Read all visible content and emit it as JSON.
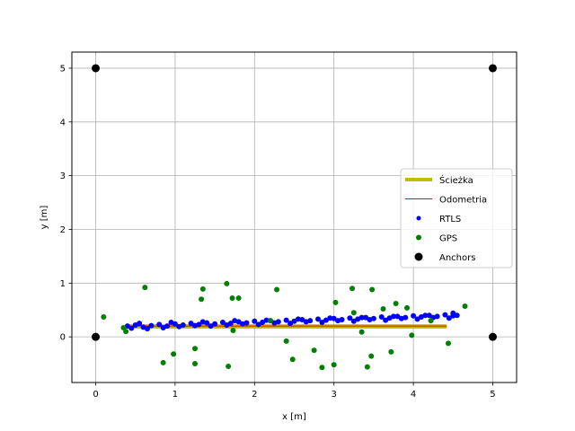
{
  "chart_data": {
    "type": "scatter",
    "xlabel": "x [m]",
    "ylabel": "y [m]",
    "xlim": [
      -0.3,
      5.3
    ],
    "ylim": [
      -0.85,
      5.3
    ],
    "xticks": [
      0,
      1,
      2,
      3,
      4,
      5
    ],
    "yticks": [
      0,
      1,
      2,
      3,
      4,
      5
    ],
    "grid": true,
    "legend_position": "center-right",
    "colors": {
      "path": "#bfbf00",
      "odometry": "#ff0000",
      "rtls": "#0000ff",
      "gps": "#008000",
      "anchors": "#000000"
    },
    "series": [
      {
        "name": "Ścieżka",
        "kind": "line",
        "x": [
          0.38,
          4.42
        ],
        "y": [
          0.2,
          0.2
        ]
      },
      {
        "name": "Odometria",
        "kind": "line",
        "x": [
          0.38,
          4.42
        ],
        "y": [
          0.2,
          0.2
        ]
      },
      {
        "name": "RTLS",
        "kind": "scatter",
        "x": [
          0.4,
          0.5,
          0.6,
          0.7,
          0.8,
          0.9,
          1.0,
          1.1,
          1.2,
          1.3,
          1.4,
          1.5,
          1.6,
          1.7,
          1.8,
          1.9,
          2.0,
          2.1,
          2.2,
          2.3,
          2.4,
          2.5,
          2.6,
          2.7,
          2.8,
          2.9,
          3.0,
          3.1,
          3.2,
          3.3,
          3.4,
          3.5,
          3.6,
          3.7,
          3.8,
          3.9,
          4.0,
          4.1,
          4.2,
          4.3,
          4.4,
          4.5,
          4.55,
          0.45,
          0.65,
          0.85,
          1.05,
          1.25,
          1.45,
          1.65,
          1.85,
          2.05,
          2.25,
          2.45,
          2.65,
          2.85,
          3.05,
          3.25,
          3.45,
          3.65,
          3.85,
          4.05,
          4.25,
          4.45,
          0.55,
          0.95,
          1.35,
          1.75,
          2.15,
          2.55,
          2.95,
          3.35,
          3.75,
          4.15,
          4.5
        ],
        "y": [
          0.2,
          0.22,
          0.18,
          0.21,
          0.23,
          0.2,
          0.24,
          0.22,
          0.25,
          0.23,
          0.26,
          0.24,
          0.27,
          0.25,
          0.28,
          0.26,
          0.29,
          0.27,
          0.3,
          0.28,
          0.31,
          0.29,
          0.32,
          0.3,
          0.33,
          0.31,
          0.34,
          0.32,
          0.35,
          0.33,
          0.36,
          0.34,
          0.37,
          0.35,
          0.38,
          0.36,
          0.39,
          0.37,
          0.4,
          0.38,
          0.41,
          0.39,
          0.4,
          0.16,
          0.15,
          0.17,
          0.19,
          0.21,
          0.2,
          0.22,
          0.24,
          0.23,
          0.26,
          0.25,
          0.28,
          0.27,
          0.3,
          0.29,
          0.32,
          0.31,
          0.34,
          0.33,
          0.36,
          0.35,
          0.25,
          0.27,
          0.28,
          0.3,
          0.31,
          0.33,
          0.35,
          0.36,
          0.38,
          0.4,
          0.44
        ]
      },
      {
        "name": "GPS",
        "kind": "scatter",
        "x": [
          0.1,
          0.35,
          0.38,
          0.62,
          0.85,
          0.98,
          1.25,
          1.25,
          1.33,
          1.35,
          1.65,
          1.67,
          1.72,
          1.73,
          1.8,
          2.2,
          2.28,
          2.4,
          2.48,
          2.75,
          2.85,
          3.0,
          3.02,
          3.23,
          3.25,
          3.35,
          3.42,
          3.47,
          3.48,
          3.62,
          3.72,
          3.78,
          3.92,
          3.98,
          4.22,
          4.44,
          4.65
        ],
        "y": [
          0.37,
          0.17,
          0.1,
          0.92,
          -0.48,
          -0.32,
          -0.22,
          -0.5,
          0.7,
          0.89,
          0.99,
          -0.55,
          0.72,
          0.12,
          0.72,
          0.3,
          0.88,
          -0.08,
          -0.42,
          -0.25,
          -0.57,
          -0.52,
          0.64,
          0.9,
          0.45,
          0.09,
          -0.56,
          -0.36,
          0.88,
          0.52,
          -0.28,
          0.62,
          0.54,
          0.03,
          0.3,
          -0.12,
          0.57
        ]
      },
      {
        "name": "Anchors",
        "kind": "scatter",
        "x": [
          0,
          5,
          0,
          5
        ],
        "y": [
          5,
          5,
          0,
          0
        ]
      }
    ]
  }
}
